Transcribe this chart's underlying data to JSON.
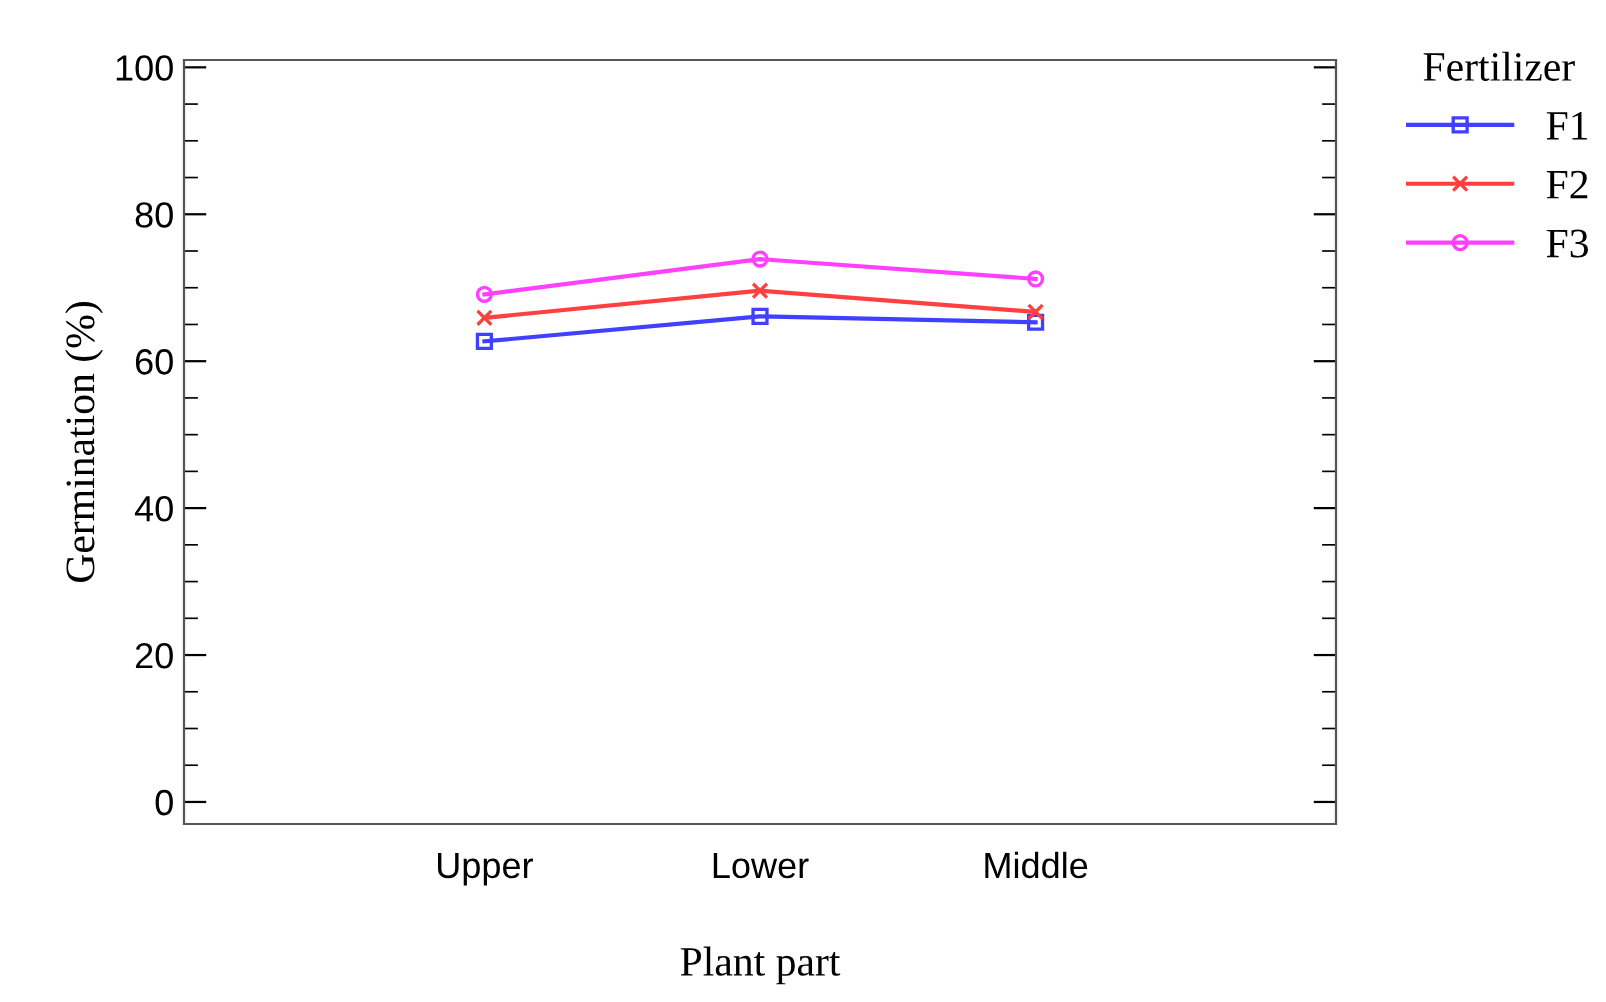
{
  "chart_data": {
    "type": "line",
    "xlabel": "Plant part",
    "ylabel": "Germination (%)",
    "legend_title": "Fertilizer",
    "legend": "top right",
    "categories": [
      "Upper",
      "Lower",
      "Middle"
    ],
    "ylim": [
      -3,
      101
    ],
    "yticks": [
      0,
      20,
      40,
      60,
      80,
      100
    ],
    "grid": false,
    "line_style": "solid",
    "series": [
      {
        "name": "F1",
        "color": "#4040ff",
        "marker": "square",
        "values": [
          62.7,
          66.1,
          65.3
        ]
      },
      {
        "name": "F2",
        "color": "#ff4040",
        "marker": "cross",
        "values": [
          65.9,
          69.6,
          66.7
        ]
      },
      {
        "name": "F3",
        "color": "#ff40ff",
        "marker": "circle",
        "values": [
          69.1,
          73.9,
          71.2
        ]
      }
    ]
  }
}
